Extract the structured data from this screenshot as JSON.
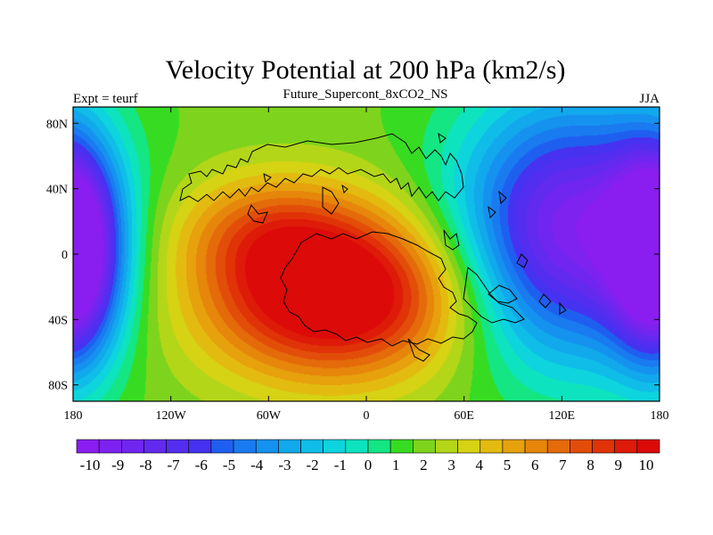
{
  "chart_data": {
    "type": "heatmap",
    "title": "Velocity Potential at 200 hPa (km2/s)",
    "subtitle": "Future_Supercont_8xCO2_NS",
    "left_label": "Expt = teurf",
    "right_label": "JJA",
    "x_axis": {
      "range": [
        -180,
        180
      ],
      "ticks": [
        -180,
        -120,
        -60,
        0,
        60,
        120,
        180
      ],
      "tick_labels": [
        "180",
        "120W",
        "60W",
        "0",
        "60E",
        "120E",
        "180"
      ]
    },
    "y_axis": {
      "range": [
        -90,
        90
      ],
      "ticks": [
        80,
        40,
        0,
        -40,
        -80
      ],
      "tick_labels": [
        "80N",
        "40N",
        "0",
        "40S",
        "80S"
      ]
    },
    "colorbar": {
      "levels": [
        -10.5,
        10.5
      ],
      "tick_labels": [
        "-10",
        "-9",
        "-8",
        "-7",
        "-6",
        "-5",
        "-4",
        "-3",
        "-2",
        "-1",
        "0",
        "1",
        "2",
        "3",
        "4",
        "5",
        "6",
        "7",
        "8",
        "9",
        "10"
      ],
      "colors": [
        "#8a1ef0",
        "#7d22ef",
        "#7026f0",
        "#622aef",
        "#542ef0",
        "#4632f0",
        "#1f5ff0",
        "#1a7bf0",
        "#1592ef",
        "#11a8ec",
        "#0fbde8",
        "#0ed4dd",
        "#0de3bf",
        "#14e683",
        "#37dc22",
        "#7ed41d",
        "#b4d618",
        "#d6d214",
        "#e3bb10",
        "#e6a10d",
        "#e6860b",
        "#e46a0a",
        "#e24e09",
        "#e03308",
        "#de1a08",
        "#dc0a08"
      ]
    },
    "field_description_note": "",
    "centers": [
      {
        "lon": -20,
        "lat": -25,
        "amp": 10.6,
        "sx": 55,
        "sy": 35
      },
      {
        "lon": -60,
        "lat": 15,
        "amp": 3.5,
        "sx": 40,
        "sy": 25
      },
      {
        "lon": 125,
        "lat": 15,
        "amp": -11.2,
        "sx": 48,
        "sy": 55
      },
      {
        "lon": -178,
        "lat": 0,
        "amp": -6.5,
        "sx": 20,
        "sy": 45
      },
      {
        "lon": 178,
        "lat": 0,
        "amp": -6.5,
        "sx": 20,
        "sy": 45
      }
    ]
  }
}
